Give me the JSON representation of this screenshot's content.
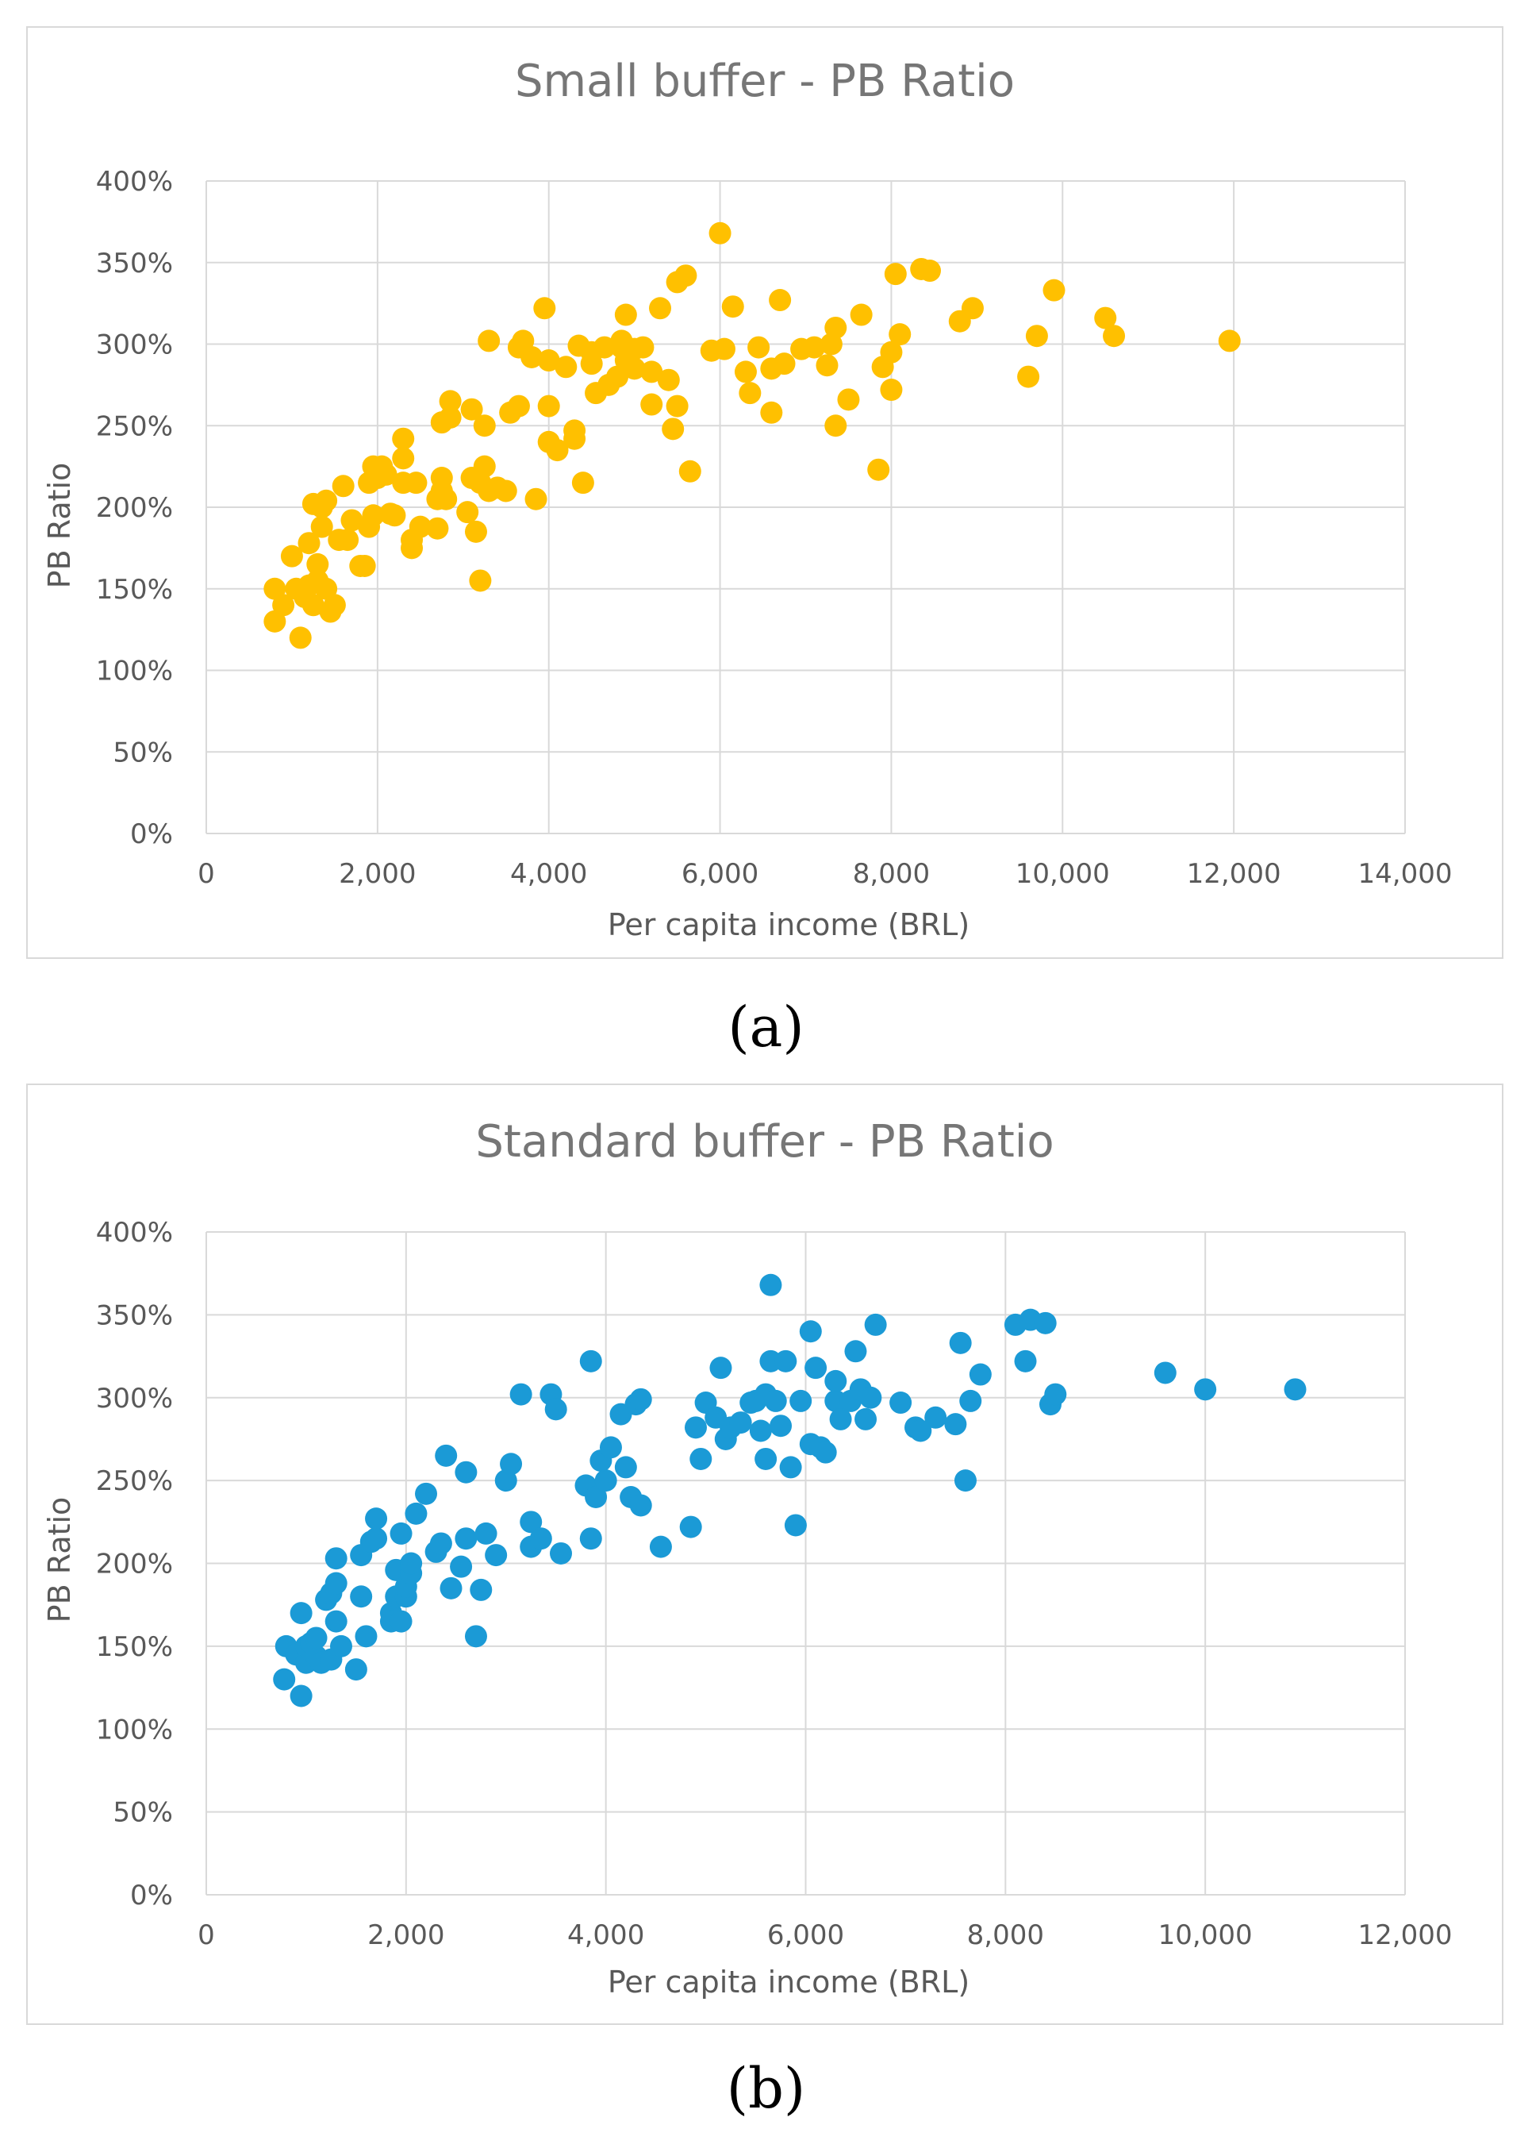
{
  "chart_data": [
    {
      "type": "scatter",
      "title": "Small buffer - PB Ratio",
      "xlabel": "Per capita income (BRL)",
      "ylabel": "PB Ratio",
      "xlim": [
        0,
        14000
      ],
      "ylim": [
        0,
        4.0
      ],
      "x_ticks": [
        "0",
        "2,000",
        "4,000",
        "6,000",
        "8,000",
        "10,000",
        "12,000",
        "14,000"
      ],
      "y_ticks": [
        "0%",
        "50%",
        "100%",
        "150%",
        "200%",
        "250%",
        "300%",
        "350%",
        "400%"
      ],
      "color": "#FFC000",
      "points": [
        [
          800,
          1.3
        ],
        [
          800,
          1.5
        ],
        [
          900,
          1.4
        ],
        [
          1000,
          1.7
        ],
        [
          1050,
          1.5
        ],
        [
          1100,
          1.2
        ],
        [
          1150,
          1.45
        ],
        [
          1200,
          1.52
        ],
        [
          1200,
          1.78
        ],
        [
          1250,
          1.4
        ],
        [
          1250,
          2.02
        ],
        [
          1300,
          1.55
        ],
        [
          1300,
          1.65
        ],
        [
          1350,
          1.88
        ],
        [
          1350,
          2.0
        ],
        [
          1400,
          1.5
        ],
        [
          1400,
          2.04
        ],
        [
          1450,
          1.36
        ],
        [
          1500,
          1.4
        ],
        [
          1550,
          1.8
        ],
        [
          1600,
          2.13
        ],
        [
          1650,
          1.8
        ],
        [
          1700,
          1.92
        ],
        [
          1800,
          1.64
        ],
        [
          1850,
          1.64
        ],
        [
          1900,
          1.88
        ],
        [
          1900,
          2.15
        ],
        [
          1950,
          1.95
        ],
        [
          1950,
          2.25
        ],
        [
          2000,
          2.18
        ],
        [
          2050,
          2.25
        ],
        [
          2100,
          2.2
        ],
        [
          2150,
          1.96
        ],
        [
          2200,
          1.95
        ],
        [
          2300,
          2.15
        ],
        [
          2300,
          2.3
        ],
        [
          2300,
          2.42
        ],
        [
          2400,
          1.75
        ],
        [
          2400,
          1.8
        ],
        [
          2450,
          2.15
        ],
        [
          2500,
          1.88
        ],
        [
          2700,
          1.87
        ],
        [
          2700,
          2.05
        ],
        [
          2750,
          2.1
        ],
        [
          2750,
          2.18
        ],
        [
          2750,
          2.52
        ],
        [
          2800,
          2.05
        ],
        [
          2850,
          2.55
        ],
        [
          2850,
          2.65
        ],
        [
          3050,
          1.97
        ],
        [
          3100,
          2.18
        ],
        [
          3100,
          2.6
        ],
        [
          3150,
          1.85
        ],
        [
          3200,
          1.55
        ],
        [
          3200,
          2.15
        ],
        [
          3250,
          2.25
        ],
        [
          3250,
          2.5
        ],
        [
          3300,
          2.1
        ],
        [
          3300,
          3.02
        ],
        [
          3400,
          2.12
        ],
        [
          3500,
          2.1
        ],
        [
          3550,
          2.58
        ],
        [
          3650,
          2.62
        ],
        [
          3650,
          2.98
        ],
        [
          3700,
          3.02
        ],
        [
          3800,
          2.92
        ],
        [
          3850,
          2.05
        ],
        [
          3950,
          3.22
        ],
        [
          4000,
          2.4
        ],
        [
          4000,
          2.62
        ],
        [
          4000,
          2.9
        ],
        [
          4100,
          2.35
        ],
        [
          4200,
          2.86
        ],
        [
          4300,
          2.42
        ],
        [
          4300,
          2.47
        ],
        [
          4350,
          2.99
        ],
        [
          4400,
          2.15
        ],
        [
          4500,
          2.88
        ],
        [
          4500,
          2.95
        ],
        [
          4550,
          2.7
        ],
        [
          4650,
          2.98
        ],
        [
          4700,
          2.75
        ],
        [
          4800,
          2.8
        ],
        [
          4850,
          2.98
        ],
        [
          4850,
          3.02
        ],
        [
          4900,
          3.18
        ],
        [
          4900,
          2.9
        ],
        [
          5000,
          2.85
        ],
        [
          5000,
          2.97
        ],
        [
          5100,
          2.98
        ],
        [
          5200,
          2.83
        ],
        [
          5200,
          2.63
        ],
        [
          5300,
          3.22
        ],
        [
          5400,
          2.78
        ],
        [
          5450,
          2.48
        ],
        [
          5500,
          2.62
        ],
        [
          5500,
          3.38
        ],
        [
          5600,
          3.42
        ],
        [
          5650,
          2.22
        ],
        [
          5900,
          2.96
        ],
        [
          6000,
          3.68
        ],
        [
          6050,
          2.97
        ],
        [
          6150,
          3.23
        ],
        [
          6300,
          2.83
        ],
        [
          6350,
          2.7
        ],
        [
          6450,
          2.98
        ],
        [
          6600,
          2.58
        ],
        [
          6600,
          2.85
        ],
        [
          6700,
          3.27
        ],
        [
          6750,
          2.88
        ],
        [
          6950,
          2.97
        ],
        [
          7100,
          2.98
        ],
        [
          7250,
          2.87
        ],
        [
          7300,
          3.0
        ],
        [
          7350,
          3.1
        ],
        [
          7350,
          2.5
        ],
        [
          7500,
          2.66
        ],
        [
          7650,
          3.18
        ],
        [
          7850,
          2.23
        ],
        [
          7900,
          2.86
        ],
        [
          8000,
          2.95
        ],
        [
          8000,
          2.72
        ],
        [
          8050,
          3.43
        ],
        [
          8100,
          3.06
        ],
        [
          8350,
          3.46
        ],
        [
          8450,
          3.45
        ],
        [
          8800,
          3.14
        ],
        [
          8950,
          3.22
        ],
        [
          9600,
          2.8
        ],
        [
          9700,
          3.05
        ],
        [
          9900,
          3.33
        ],
        [
          10500,
          3.16
        ],
        [
          10600,
          3.05
        ],
        [
          11950,
          3.02
        ]
      ]
    },
    {
      "type": "scatter",
      "title": "Standard buffer - PB Ratio",
      "xlabel": "Per capita income (BRL)",
      "ylabel": "PB Ratio",
      "xlim": [
        0,
        12000
      ],
      "ylim": [
        0,
        4.0
      ],
      "x_ticks": [
        "0",
        "2,000",
        "4,000",
        "6,000",
        "8,000",
        "10,000",
        "12,000"
      ],
      "y_ticks": [
        "0%",
        "50%",
        "100%",
        "150%",
        "200%",
        "250%",
        "300%",
        "350%",
        "400%"
      ],
      "color": "#1B9AD6",
      "points": [
        [
          780,
          1.3
        ],
        [
          800,
          1.5
        ],
        [
          900,
          1.45
        ],
        [
          950,
          1.2
        ],
        [
          950,
          1.7
        ],
        [
          1000,
          1.4
        ],
        [
          1000,
          1.5
        ],
        [
          1050,
          1.52
        ],
        [
          1100,
          1.44
        ],
        [
          1100,
          1.55
        ],
        [
          1150,
          1.4
        ],
        [
          1200,
          1.78
        ],
        [
          1250,
          1.42
        ],
        [
          1250,
          1.82
        ],
        [
          1300,
          1.65
        ],
        [
          1300,
          1.88
        ],
        [
          1300,
          2.03
        ],
        [
          1350,
          1.5
        ],
        [
          1500,
          1.36
        ],
        [
          1550,
          1.8
        ],
        [
          1550,
          2.05
        ],
        [
          1600,
          1.56
        ],
        [
          1650,
          2.13
        ],
        [
          1700,
          2.15
        ],
        [
          1700,
          2.27
        ],
        [
          1850,
          1.7
        ],
        [
          1850,
          1.65
        ],
        [
          1900,
          1.8
        ],
        [
          1900,
          1.96
        ],
        [
          1950,
          1.65
        ],
        [
          1950,
          2.18
        ],
        [
          2000,
          1.8
        ],
        [
          2000,
          1.86
        ],
        [
          2050,
          1.94
        ],
        [
          2050,
          2.0
        ],
        [
          2100,
          2.3
        ],
        [
          2200,
          2.42
        ],
        [
          2300,
          2.07
        ],
        [
          2350,
          2.12
        ],
        [
          2400,
          2.65
        ],
        [
          2450,
          1.85
        ],
        [
          2550,
          1.98
        ],
        [
          2600,
          2.55
        ],
        [
          2600,
          2.15
        ],
        [
          2700,
          1.56
        ],
        [
          2750,
          1.84
        ],
        [
          2800,
          2.18
        ],
        [
          2900,
          2.05
        ],
        [
          3000,
          2.5
        ],
        [
          3050,
          2.6
        ],
        [
          3150,
          3.02
        ],
        [
          3250,
          2.25
        ],
        [
          3250,
          2.1
        ],
        [
          3350,
          2.15
        ],
        [
          3450,
          3.02
        ],
        [
          3500,
          2.93
        ],
        [
          3550,
          2.06
        ],
        [
          3800,
          2.47
        ],
        [
          3850,
          3.22
        ],
        [
          3850,
          2.15
        ],
        [
          3900,
          2.4
        ],
        [
          3950,
          2.62
        ],
        [
          4000,
          2.5
        ],
        [
          4050,
          2.7
        ],
        [
          4150,
          2.9
        ],
        [
          4200,
          2.58
        ],
        [
          4250,
          2.4
        ],
        [
          4300,
          2.96
        ],
        [
          4350,
          2.99
        ],
        [
          4350,
          2.35
        ],
        [
          4550,
          2.1
        ],
        [
          4850,
          2.22
        ],
        [
          4900,
          2.82
        ],
        [
          4950,
          2.63
        ],
        [
          5000,
          2.97
        ],
        [
          5100,
          2.88
        ],
        [
          5150,
          3.18
        ],
        [
          5200,
          2.75
        ],
        [
          5250,
          2.82
        ],
        [
          5350,
          2.85
        ],
        [
          5450,
          2.97
        ],
        [
          5500,
          2.98
        ],
        [
          5550,
          2.8
        ],
        [
          5600,
          2.63
        ],
        [
          5600,
          3.02
        ],
        [
          5650,
          3.22
        ],
        [
          5650,
          3.68
        ],
        [
          5700,
          2.98
        ],
        [
          5750,
          2.83
        ],
        [
          5800,
          3.22
        ],
        [
          5850,
          2.58
        ],
        [
          5900,
          2.23
        ],
        [
          5950,
          2.98
        ],
        [
          6050,
          2.72
        ],
        [
          6050,
          3.4
        ],
        [
          6100,
          3.18
        ],
        [
          6150,
          2.7
        ],
        [
          6200,
          2.67
        ],
        [
          6300,
          2.98
        ],
        [
          6300,
          3.1
        ],
        [
          6350,
          2.87
        ],
        [
          6450,
          2.98
        ],
        [
          6500,
          3.28
        ],
        [
          6550,
          3.05
        ],
        [
          6600,
          2.87
        ],
        [
          6650,
          3.0
        ],
        [
          6700,
          3.44
        ],
        [
          6950,
          2.97
        ],
        [
          7100,
          2.82
        ],
        [
          7150,
          2.8
        ],
        [
          7300,
          2.88
        ],
        [
          7500,
          2.84
        ],
        [
          7550,
          3.33
        ],
        [
          7600,
          2.5
        ],
        [
          7650,
          2.98
        ],
        [
          7750,
          3.14
        ],
        [
          8100,
          3.44
        ],
        [
          8200,
          3.22
        ],
        [
          8250,
          3.47
        ],
        [
          8400,
          3.45
        ],
        [
          8450,
          2.96
        ],
        [
          8500,
          3.02
        ],
        [
          9600,
          3.15
        ],
        [
          10000,
          3.05
        ],
        [
          10900,
          3.05
        ]
      ]
    }
  ],
  "captions": {
    "a": "(a)",
    "b": "(b)"
  },
  "colors": {
    "gridline": "#d9d9d9",
    "axis_text": "#595959",
    "title_text": "#767676",
    "frame": "#d9d9d9"
  }
}
